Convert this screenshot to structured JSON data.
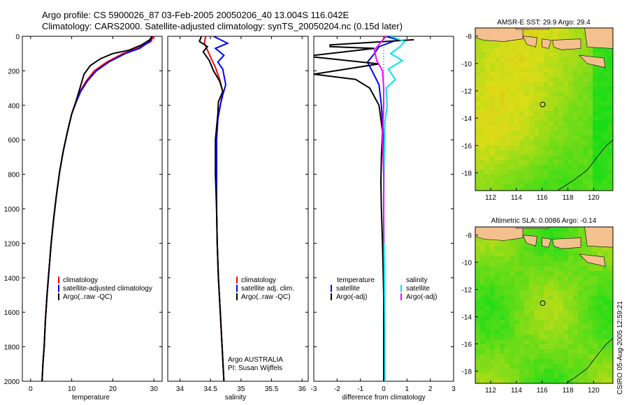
{
  "header": {
    "line1": "Argo profile: CS 5900026_87 03-Feb-2005 20050206_40 13.004S 116.042E",
    "line2": "Climatology: CARS2000. Satellite-adjusted climatology: synTS_20050204.nc (0.15d later)",
    "stamp": "CSIRO 05-Aug-2005 12:59:21"
  },
  "colors": {
    "climatology": "#ff0000",
    "satellite": "#0000ff",
    "argo": "#000000",
    "salinity_satellite": "#00e5ee",
    "salinity_argo": "#ff00ff",
    "land": "#f4c08e",
    "map_track": "#000000"
  },
  "chart_data": [
    {
      "id": "temperature",
      "type": "line",
      "xlabel": "temperature",
      "xlim": [
        -2,
        32
      ],
      "ylim": [
        2000,
        0
      ],
      "xticks": [
        0,
        10,
        20,
        30
      ],
      "yticks": [
        0,
        200,
        400,
        600,
        800,
        1000,
        1200,
        1400,
        1600,
        1800,
        2000
      ],
      "legend": [
        "climatology",
        "satellite-adjusted climatology",
        "Argo(..raw -QC)"
      ],
      "series": [
        {
          "name": "climatology",
          "color": "#ff0000",
          "points": [
            [
              29.8,
              0
            ],
            [
              29.3,
              30
            ],
            [
              26,
              70
            ],
            [
              22.5,
              100
            ],
            [
              18.5,
              150
            ],
            [
              15.5,
              200
            ],
            [
              13.5,
              260
            ],
            [
              12,
              320
            ],
            [
              11,
              380
            ],
            [
              10,
              450
            ],
            [
              9,
              550
            ],
            [
              8,
              660
            ],
            [
              7.1,
              780
            ],
            [
              6.3,
              920
            ],
            [
              5.6,
              1060
            ],
            [
              5,
              1200
            ],
            [
              4.5,
              1350
            ],
            [
              4,
              1500
            ],
            [
              3.6,
              1650
            ],
            [
              3.3,
              1800
            ],
            [
              3,
              1900
            ],
            [
              2.8,
              2000
            ]
          ]
        },
        {
          "name": "satellite-adjusted climatology",
          "color": "#0000ff",
          "points": [
            [
              29.5,
              0
            ],
            [
              29,
              30
            ],
            [
              26.5,
              70
            ],
            [
              23,
              100
            ],
            [
              19,
              150
            ],
            [
              16,
              200
            ],
            [
              13.8,
              260
            ],
            [
              12.2,
              320
            ],
            [
              11.1,
              380
            ],
            [
              10,
              450
            ],
            [
              9,
              550
            ],
            [
              8,
              660
            ],
            [
              7.1,
              780
            ],
            [
              6.3,
              920
            ],
            [
              5.6,
              1060
            ],
            [
              5,
              1200
            ],
            [
              4.5,
              1350
            ],
            [
              4,
              1500
            ],
            [
              3.6,
              1650
            ],
            [
              3.3,
              1800
            ],
            [
              3,
              1900
            ],
            [
              2.8,
              2000
            ]
          ]
        },
        {
          "name": "Argo(..raw -QC)",
          "color": "#000000",
          "points": [
            [
              29.5,
              0
            ],
            [
              29,
              20
            ],
            [
              27,
              50
            ],
            [
              24,
              80
            ],
            [
              20,
              100
            ],
            [
              17,
              130
            ],
            [
              14.5,
              170
            ],
            [
              13,
              220
            ],
            [
              12,
              300
            ],
            [
              11,
              380
            ],
            [
              10,
              450
            ],
            [
              9,
              550
            ],
            [
              8,
              660
            ],
            [
              7.1,
              780
            ],
            [
              6.3,
              920
            ],
            [
              5.6,
              1060
            ],
            [
              5,
              1200
            ],
            [
              4.5,
              1350
            ],
            [
              4,
              1500
            ],
            [
              3.6,
              1650
            ],
            [
              3.3,
              1800
            ],
            [
              3,
              1900
            ],
            [
              2.8,
              2000
            ]
          ]
        }
      ]
    },
    {
      "id": "salinity",
      "type": "line",
      "xlabel": "salinity",
      "xlim": [
        33.8,
        36.1
      ],
      "ylim": [
        2000,
        0
      ],
      "xticks": [
        34,
        34.5,
        35,
        35.5,
        36
      ],
      "legend": [
        "climatology",
        "satellite adj. clim.",
        "Argo(..raw -QC)"
      ],
      "annotation": [
        "Argo AUSTRALIA",
        "PI: Susan Wijffels"
      ],
      "series": [
        {
          "name": "climatology",
          "color": "#ff0000",
          "points": [
            [
              34.42,
              0
            ],
            [
              34.4,
              40
            ],
            [
              34.45,
              80
            ],
            [
              34.5,
              120
            ],
            [
              34.58,
              180
            ],
            [
              34.65,
              250
            ],
            [
              34.7,
              320
            ],
            [
              34.66,
              400
            ],
            [
              34.62,
              480
            ],
            [
              34.6,
              600
            ],
            [
              34.6,
              800
            ],
            [
              34.6,
              1000
            ],
            [
              34.61,
              1200
            ],
            [
              34.63,
              1400
            ],
            [
              34.66,
              1600
            ],
            [
              34.69,
              1800
            ],
            [
              34.72,
              2000
            ]
          ]
        },
        {
          "name": "satellite adj. clim.",
          "color": "#0000ff",
          "points": [
            [
              34.55,
              0
            ],
            [
              34.78,
              40
            ],
            [
              34.58,
              70
            ],
            [
              34.72,
              110
            ],
            [
              34.62,
              150
            ],
            [
              34.7,
              190
            ],
            [
              34.75,
              280
            ],
            [
              34.7,
              340
            ],
            [
              34.66,
              400
            ],
            [
              34.62,
              480
            ],
            [
              34.6,
              600
            ],
            [
              34.6,
              800
            ],
            [
              34.6,
              1000
            ],
            [
              34.61,
              1200
            ],
            [
              34.63,
              1400
            ],
            [
              34.66,
              1600
            ],
            [
              34.69,
              1800
            ],
            [
              34.72,
              2000
            ]
          ]
        },
        {
          "name": "Argo(..raw -QC)",
          "color": "#000000",
          "points": [
            [
              34.35,
              0
            ],
            [
              34.32,
              30
            ],
            [
              34.45,
              60
            ],
            [
              34.38,
              90
            ],
            [
              34.48,
              140
            ],
            [
              34.55,
              200
            ],
            [
              34.65,
              260
            ],
            [
              34.7,
              320
            ],
            [
              34.63,
              380
            ],
            [
              34.62,
              450
            ],
            [
              34.58,
              600
            ],
            [
              34.58,
              800
            ],
            [
              34.6,
              1000
            ],
            [
              34.61,
              1200
            ],
            [
              34.63,
              1400
            ],
            [
              34.66,
              1600
            ],
            [
              34.69,
              1800
            ],
            [
              34.72,
              2000
            ]
          ]
        }
      ]
    },
    {
      "id": "difference",
      "type": "line",
      "xlabel": "difference from climatology",
      "xlim": [
        -3,
        3
      ],
      "ylim": [
        2000,
        0
      ],
      "xticks": [
        -3,
        -2,
        -1,
        0,
        1,
        2,
        3
      ],
      "legend_left_title": "temperature",
      "legend_left": [
        "satellite",
        "Argo(-adj)"
      ],
      "legend_right_title": "salinity",
      "legend_right": [
        "satellite",
        "Argo(-adj)"
      ],
      "series": [
        {
          "name": "temperature satellite",
          "color": "#0000ff",
          "points": [
            [
              0.1,
              0
            ],
            [
              0.6,
              20
            ],
            [
              -0.2,
              60
            ],
            [
              -0.4,
              100
            ],
            [
              -0.7,
              150
            ],
            [
              -0.5,
              200
            ],
            [
              -0.2,
              280
            ],
            [
              -0.1,
              400
            ],
            [
              0,
              600
            ],
            [
              0,
              1000
            ],
            [
              0,
              1500
            ],
            [
              0,
              2000
            ]
          ]
        },
        {
          "name": "temperature Argo(-adj)",
          "color": "#000000",
          "points": [
            [
              1.3,
              20
            ],
            [
              -2.3,
              50
            ],
            [
              -2.3,
              60
            ],
            [
              -0.4,
              70
            ],
            [
              -3,
              110
            ],
            [
              -3,
              120
            ],
            [
              -0.2,
              160
            ],
            [
              -3,
              220
            ],
            [
              -1.2,
              250
            ],
            [
              -0.6,
              300
            ],
            [
              -0.2,
              400
            ],
            [
              -0.05,
              550
            ],
            [
              -0.1,
              700
            ],
            [
              -0.12,
              850
            ],
            [
              -0.1,
              1000
            ],
            [
              -0.05,
              1200
            ],
            [
              0,
              1500
            ],
            [
              0,
              2000
            ]
          ]
        },
        {
          "name": "salinity satellite",
          "color": "#00e5ee",
          "points": [
            [
              0.3,
              0
            ],
            [
              0.9,
              30
            ],
            [
              0.7,
              60
            ],
            [
              0.3,
              100
            ],
            [
              0.8,
              140
            ],
            [
              0.2,
              190
            ],
            [
              0.5,
              250
            ],
            [
              0.1,
              300
            ],
            [
              0.15,
              400
            ],
            [
              0.05,
              500
            ],
            [
              0.02,
              700
            ],
            [
              0,
              1000
            ],
            [
              0.03,
              1400
            ],
            [
              0.05,
              1700
            ],
            [
              0.05,
              2000
            ]
          ]
        },
        {
          "name": "salinity Argo(-adj)",
          "color": "#ff00ff",
          "points": [
            [
              0.1,
              0
            ],
            [
              -0.1,
              30
            ],
            [
              -0.4,
              80
            ],
            [
              -0.3,
              140
            ],
            [
              -0.05,
              200
            ],
            [
              0,
              300
            ],
            [
              0,
              400
            ],
            [
              -0.03,
              500
            ],
            [
              -0.05,
              600
            ],
            [
              0,
              800
            ],
            [
              0,
              1200
            ]
          ]
        }
      ]
    }
  ],
  "maps": [
    {
      "id": "sst",
      "title": "AMSR-E SST: 29.9 Argo: 29.4",
      "xticks": [
        112,
        114,
        116,
        118,
        120
      ],
      "yticks": [
        -8,
        -10,
        -12,
        -14,
        -16,
        -18
      ],
      "xlim": [
        110.8,
        121.5
      ],
      "ylim": [
        -7.4,
        -19.3
      ],
      "marker": [
        116.04,
        -13.0
      ]
    },
    {
      "id": "sla",
      "title": "Altimetric SLA: 0.0086 Argo: -0.14",
      "xticks": [
        112,
        114,
        116,
        118,
        120
      ],
      "yticks": [
        -8,
        -10,
        -12,
        -14,
        -16,
        -18
      ],
      "xlim": [
        110.8,
        121.5
      ],
      "ylim": [
        -7.4,
        -18.9
      ],
      "marker": [
        116.04,
        -13.0
      ]
    }
  ]
}
